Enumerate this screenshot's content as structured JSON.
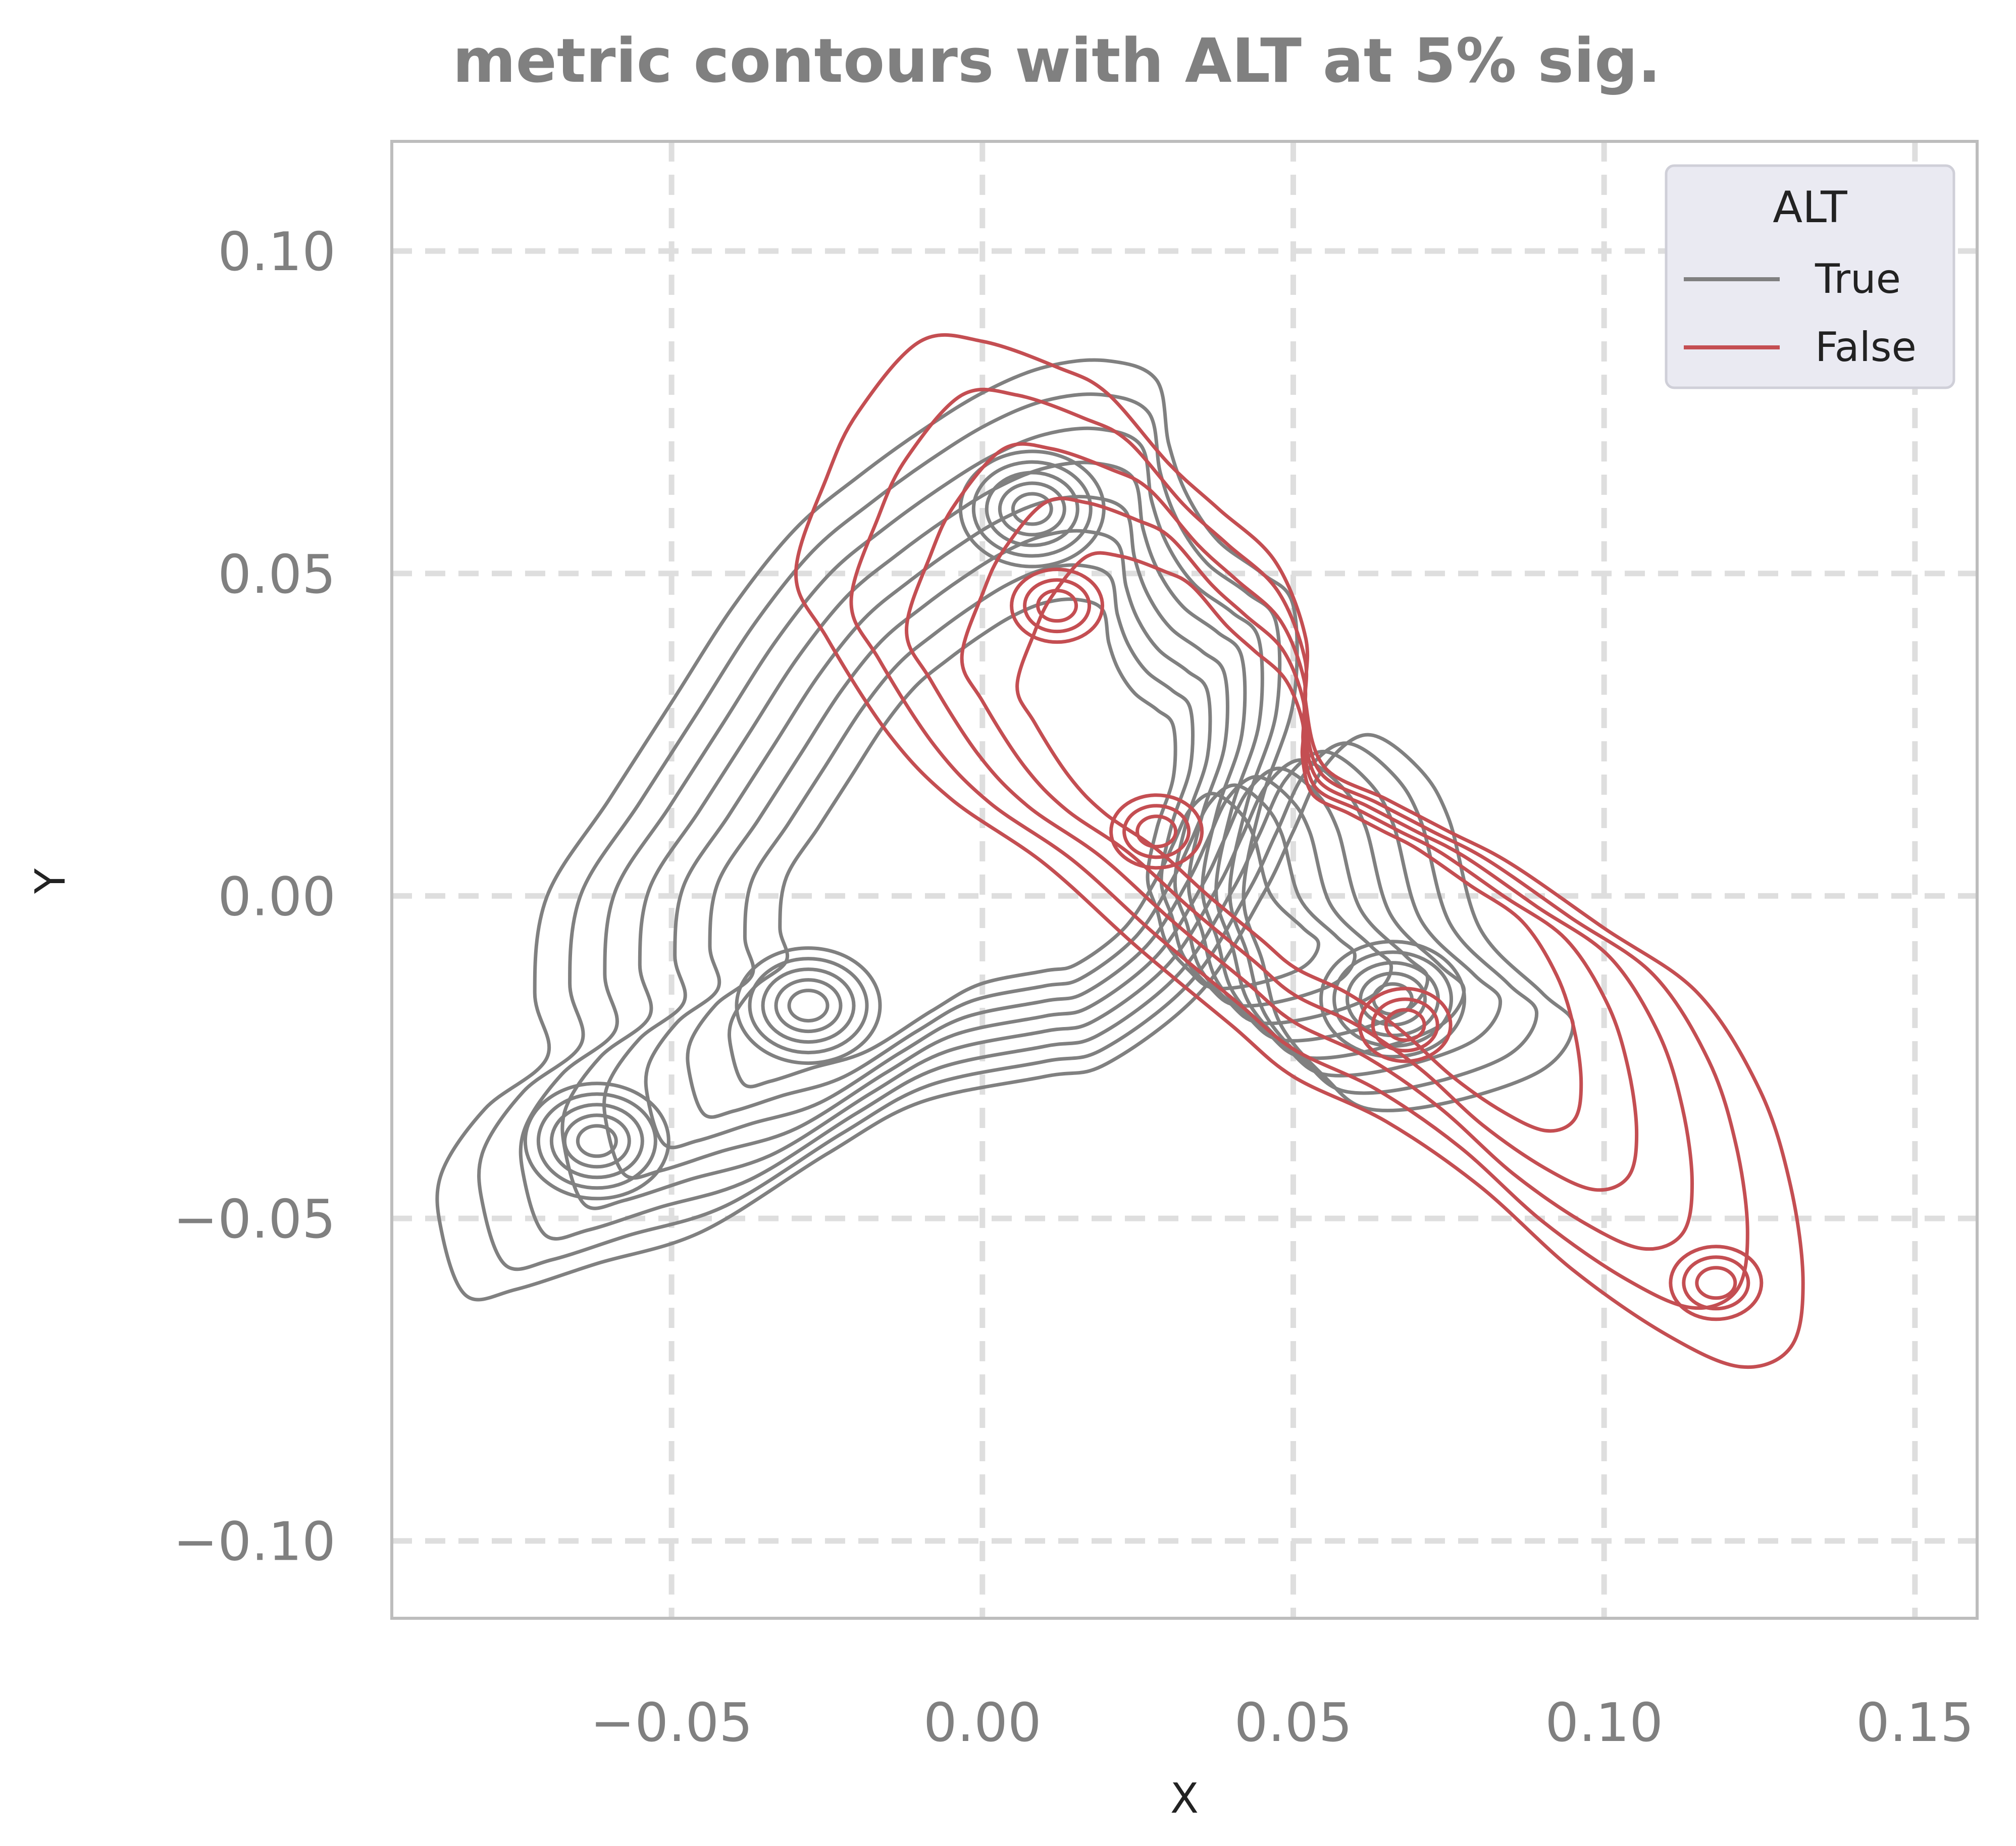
{
  "chart_data": {
    "type": "contour",
    "title": "metric contours with ALT at 5% sig.",
    "xlabel": "X",
    "ylabel": "Y",
    "xlim": [
      -0.095,
      0.16
    ],
    "ylim": [
      -0.112,
      0.117
    ],
    "xticks": [
      -0.05,
      0.0,
      0.05,
      0.1,
      0.15
    ],
    "xtick_labels": [
      "−0.05",
      "0.00",
      "0.05",
      "0.10",
      "0.15"
    ],
    "yticks": [
      -0.1,
      -0.05,
      0.0,
      0.05,
      0.1
    ],
    "ytick_labels": [
      "−0.10",
      "−0.05",
      "0.00",
      "0.05",
      "0.10"
    ],
    "grid": true,
    "legend": {
      "title": "ALT",
      "position": "top-right",
      "entries": [
        "True",
        "False"
      ]
    },
    "series": [
      {
        "name": "True",
        "color": "#808080",
        "modes": [
          {
            "x": -0.062,
            "y": -0.038
          },
          {
            "x": -0.028,
            "y": -0.017
          },
          {
            "x": 0.008,
            "y": 0.06
          },
          {
            "x": 0.066,
            "y": -0.016
          }
        ],
        "outer_contour": [
          [
            -0.087,
            -0.052
          ],
          [
            -0.083,
            -0.062
          ],
          [
            -0.075,
            -0.061
          ],
          [
            -0.062,
            -0.057
          ],
          [
            -0.045,
            -0.052
          ],
          [
            -0.025,
            -0.04
          ],
          [
            -0.01,
            -0.032
          ],
          [
            0.01,
            -0.028
          ],
          [
            0.02,
            -0.026
          ],
          [
            0.035,
            -0.015
          ],
          [
            0.045,
            0.0
          ],
          [
            0.05,
            0.01
          ],
          [
            0.055,
            0.02
          ],
          [
            0.062,
            0.025
          ],
          [
            0.07,
            0.02
          ],
          [
            0.075,
            0.012
          ],
          [
            0.08,
            -0.005
          ],
          [
            0.09,
            -0.015
          ],
          [
            0.095,
            -0.02
          ],
          [
            0.09,
            -0.027
          ],
          [
            0.075,
            -0.032
          ],
          [
            0.062,
            -0.033
          ],
          [
            0.055,
            -0.028
          ],
          [
            0.048,
            -0.02
          ],
          [
            0.045,
            -0.01
          ],
          [
            0.042,
            0.0
          ],
          [
            0.045,
            0.015
          ],
          [
            0.05,
            0.03
          ],
          [
            0.05,
            0.045
          ],
          [
            0.045,
            0.05
          ],
          [
            0.038,
            0.055
          ],
          [
            0.033,
            0.062
          ],
          [
            0.03,
            0.07
          ],
          [
            0.028,
            0.08
          ],
          [
            0.02,
            0.083
          ],
          [
            0.01,
            0.082
          ],
          [
            0.0,
            0.078
          ],
          [
            -0.01,
            0.072
          ],
          [
            -0.02,
            0.065
          ],
          [
            -0.03,
            0.057
          ],
          [
            -0.04,
            0.045
          ],
          [
            -0.05,
            0.03
          ],
          [
            -0.06,
            0.015
          ],
          [
            -0.07,
            0.0
          ],
          [
            -0.072,
            -0.015
          ],
          [
            -0.07,
            -0.025
          ],
          [
            -0.08,
            -0.033
          ],
          [
            -0.087,
            -0.043
          ]
        ],
        "levels": 18
      },
      {
        "name": "False",
        "color": "#c44e52",
        "modes": [
          {
            "x": 0.012,
            "y": 0.045
          },
          {
            "x": 0.028,
            "y": 0.01
          },
          {
            "x": 0.068,
            "y": -0.02
          },
          {
            "x": 0.118,
            "y": -0.06
          }
        ],
        "outer_contour": [
          [
            -0.01,
            0.086
          ],
          [
            0.0,
            0.086
          ],
          [
            0.012,
            0.082
          ],
          [
            0.02,
            0.078
          ],
          [
            0.03,
            0.067
          ],
          [
            0.038,
            0.06
          ],
          [
            0.047,
            0.052
          ],
          [
            0.052,
            0.04
          ],
          [
            0.052,
            0.03
          ],
          [
            0.055,
            0.02
          ],
          [
            0.065,
            0.015
          ],
          [
            0.075,
            0.01
          ],
          [
            0.085,
            0.005
          ],
          [
            0.1,
            -0.005
          ],
          [
            0.115,
            -0.015
          ],
          [
            0.125,
            -0.03
          ],
          [
            0.13,
            -0.045
          ],
          [
            0.132,
            -0.06
          ],
          [
            0.13,
            -0.07
          ],
          [
            0.122,
            -0.073
          ],
          [
            0.11,
            -0.068
          ],
          [
            0.095,
            -0.058
          ],
          [
            0.08,
            -0.045
          ],
          [
            0.065,
            -0.035
          ],
          [
            0.05,
            -0.028
          ],
          [
            0.04,
            -0.02
          ],
          [
            0.025,
            -0.008
          ],
          [
            0.01,
            0.005
          ],
          [
            -0.005,
            0.015
          ],
          [
            -0.015,
            0.025
          ],
          [
            -0.025,
            0.04
          ],
          [
            -0.03,
            0.05
          ],
          [
            -0.025,
            0.065
          ],
          [
            -0.02,
            0.075
          ]
        ],
        "levels": 10
      }
    ]
  }
}
